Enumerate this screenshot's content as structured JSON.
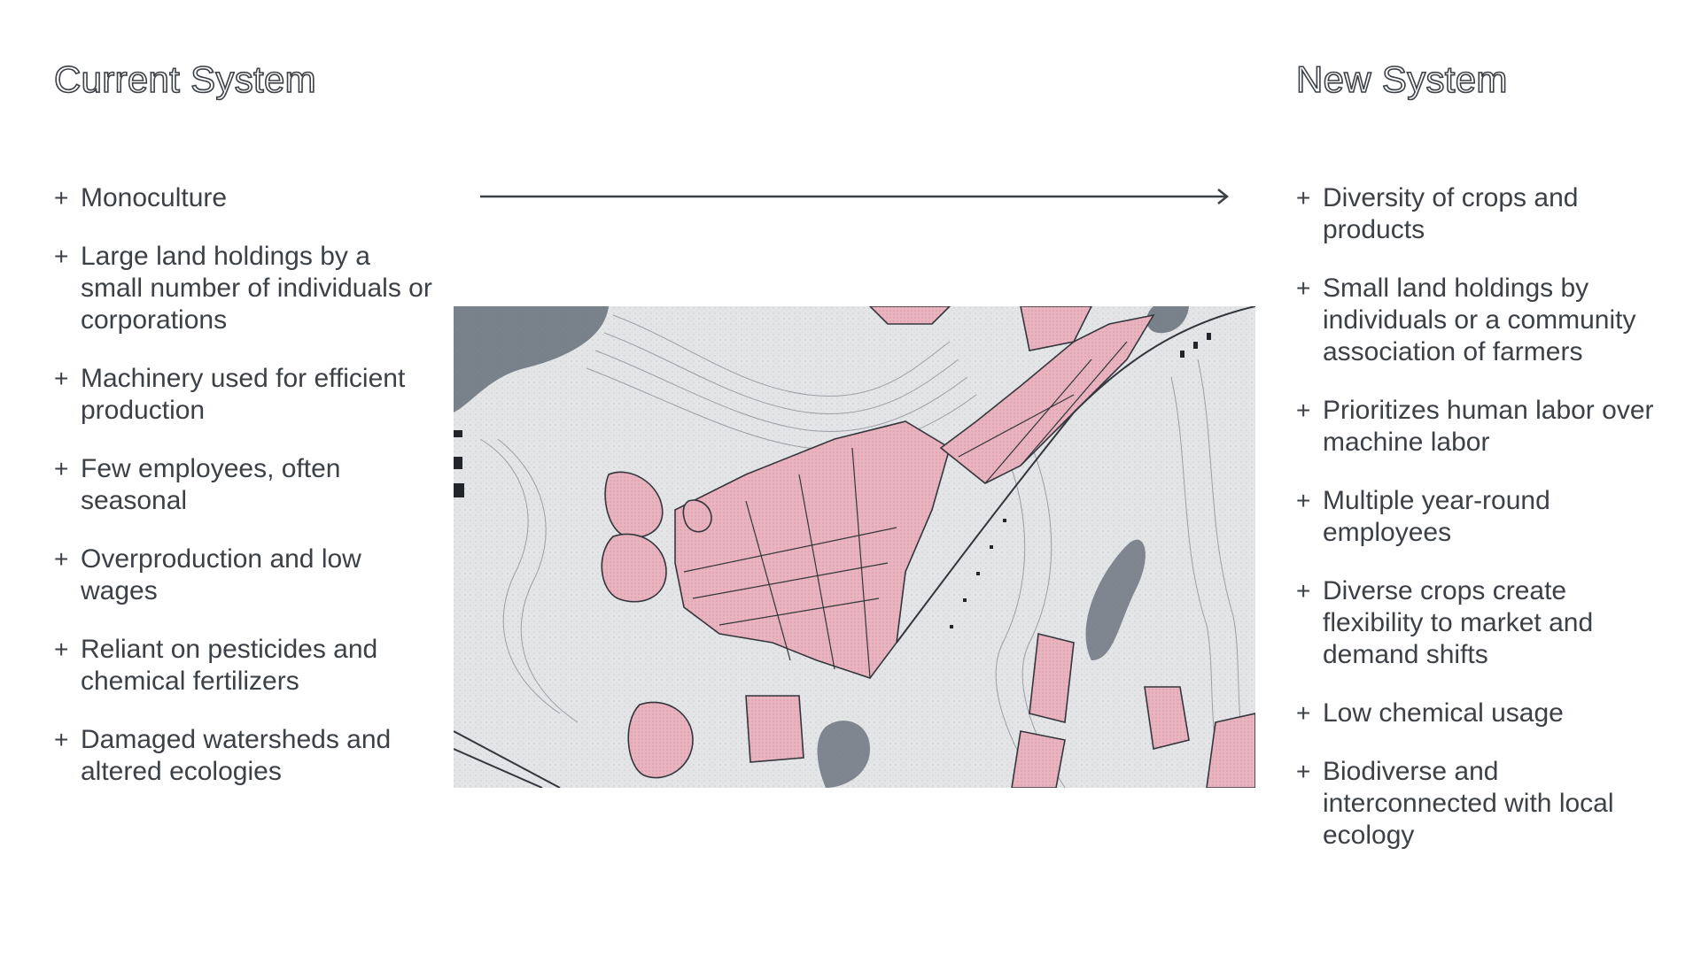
{
  "current": {
    "title": "Current System",
    "items": [
      "Monoculture",
      "Large land holdings by a small number of individuals or corporations",
      "Machinery used for efficient production",
      "Few employees, often seasonal",
      "Overproduction and low wages",
      "Reliant on pesticides and chemical fertilizers",
      "Damaged watersheds and altered ecologies"
    ]
  },
  "new": {
    "title": "New System",
    "items": [
      "Diversity of crops and products",
      "Small land holdings by individuals or a community association of farmers",
      "Prioritizes human labor over machine labor",
      "Multiple year-round employees",
      "Diverse crops create flexibility to market and demand shifts",
      "Low chemical usage",
      "Biodiverse and interconnected with local ecology"
    ]
  },
  "bullet_symbol": "+",
  "colors": {
    "text": "#3c4047",
    "farmland": "#e9b3bf",
    "water": "#6d7580",
    "terrain": "#e7e8ea"
  }
}
